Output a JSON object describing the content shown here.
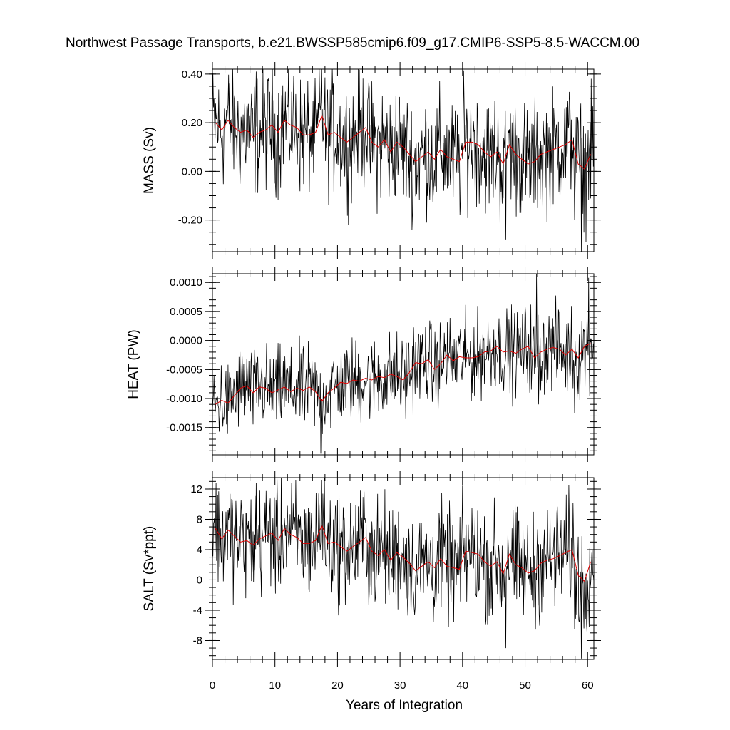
{
  "chart_data": {
    "title": "Northwest Passage Transports, b.e21.BWSSP585cmip6.f09_g17.CMIP6-SSP5-8.5-WACCM.00",
    "type": "line",
    "xlabel": "Years of Integration",
    "xlim": [
      0,
      61
    ],
    "xticks": [
      "0",
      "10",
      "20",
      "30",
      "40",
      "50",
      "60"
    ],
    "series_colors": {
      "monthly": "#000000",
      "annual": "#e00000"
    },
    "panels": [
      {
        "ylabel": "MASS (Sv)",
        "ylim": [
          -0.33,
          0.42
        ],
        "yticks": [
          0.4,
          0.2,
          0.0,
          -0.2
        ],
        "ytick_labels": [
          "0.40",
          "0.20",
          "0.00",
          "-0.20"
        ],
        "minor_step": 0.05,
        "annual_mean": [
          0.2,
          0.17,
          0.21,
          0.18,
          0.16,
          0.17,
          0.14,
          0.16,
          0.17,
          0.19,
          0.16,
          0.21,
          0.19,
          0.18,
          0.15,
          0.15,
          0.16,
          0.23,
          0.15,
          0.16,
          0.14,
          0.12,
          0.14,
          0.16,
          0.18,
          0.12,
          0.1,
          0.13,
          0.08,
          0.12,
          0.1,
          0.07,
          0.04,
          0.06,
          0.08,
          0.05,
          0.09,
          0.06,
          0.05,
          0.04,
          0.12,
          0.12,
          0.11,
          0.08,
          0.06,
          0.08,
          0.03,
          0.11,
          0.07,
          0.05,
          0.03,
          0.04,
          0.07,
          0.08,
          0.09,
          0.1,
          0.11,
          0.13,
          0.03,
          0.01,
          0.07
        ],
        "noise_amp": 0.24,
        "spikes": [
          [
            17.4,
            0.42
          ],
          [
            7.0,
            0.41
          ],
          [
            46.9,
            -0.28
          ],
          [
            59.0,
            -0.33
          ],
          [
            57.9,
            -0.2
          ]
        ]
      },
      {
        "ylabel": "HEAT (PW)",
        "ylim": [
          -0.00197,
          0.00115
        ],
        "yticks": [
          0.001,
          0.0005,
          0.0,
          -0.0005,
          -0.001,
          -0.0015
        ],
        "ytick_labels": [
          "0.0010",
          "0.0005",
          "0.0000",
          "-0.0005",
          "-0.0010",
          "-0.0015"
        ],
        "minor_step": 0.0001,
        "annual_mean": [
          -0.0011,
          -0.00103,
          -0.00108,
          -0.00095,
          -0.00082,
          -0.00078,
          -0.0009,
          -0.0008,
          -0.00082,
          -0.0009,
          -0.00085,
          -0.0008,
          -0.00088,
          -0.00082,
          -0.00086,
          -0.0008,
          -0.00088,
          -0.00105,
          -0.0009,
          -0.00082,
          -0.00072,
          -0.00074,
          -0.00068,
          -0.0007,
          -0.00065,
          -0.00068,
          -0.00062,
          -0.00064,
          -0.00058,
          -0.00062,
          -0.00068,
          -0.00055,
          -0.00038,
          -0.0004,
          -0.00033,
          -0.0005,
          -0.0004,
          -0.00025,
          -0.00035,
          -0.00028,
          -0.0003,
          -0.0003,
          -0.00028,
          -0.0002,
          -0.00018,
          -0.0001,
          -0.0002,
          -0.00018,
          -0.00022,
          -0.00015,
          -0.0001,
          -0.0003,
          -0.0002,
          -0.00015,
          -0.00012,
          -0.00015,
          -0.00025,
          -0.00015,
          -0.0003,
          -0.0001,
          -5e-05
        ],
        "noise_amp": 0.00072,
        "spikes": [
          [
            17.3,
            -0.00195
          ],
          [
            51.8,
            0.00115
          ],
          [
            60.2,
            0.00108
          ],
          [
            57.9,
            -0.00125
          ],
          [
            52.2,
            -0.0011
          ]
        ]
      },
      {
        "ylabel": "SALT (Sv*ppt)",
        "ylim": [
          -10.5,
          13.5
        ],
        "yticks": [
          12,
          8,
          4,
          0,
          -4,
          -8
        ],
        "ytick_labels": [
          "12",
          "8",
          "4",
          "0",
          "-4",
          "-8"
        ],
        "minor_step": 1,
        "annual_mean": [
          6.8,
          5.4,
          6.6,
          5.8,
          5.0,
          5.2,
          4.6,
          5.4,
          5.8,
          6.2,
          5.2,
          6.8,
          6.0,
          5.6,
          4.8,
          4.8,
          5.2,
          7.2,
          4.8,
          5.0,
          4.4,
          3.8,
          4.4,
          5.0,
          5.6,
          3.8,
          3.2,
          4.0,
          2.6,
          3.6,
          3.0,
          2.2,
          1.2,
          1.8,
          2.4,
          1.6,
          2.8,
          1.8,
          1.6,
          1.4,
          3.8,
          3.6,
          3.4,
          2.4,
          1.8,
          2.4,
          0.8,
          3.4,
          2.0,
          1.6,
          0.9,
          1.2,
          2.2,
          2.6,
          2.8,
          3.2,
          3.6,
          4.0,
          0.6,
          -0.2,
          2.4
        ],
        "noise_amp": 7.2,
        "spikes": [
          [
            17.4,
            13.2
          ],
          [
            7.0,
            12.8
          ],
          [
            46.9,
            -9.0
          ],
          [
            59.0,
            -10.4
          ],
          [
            57.9,
            -6.5
          ]
        ]
      }
    ]
  }
}
